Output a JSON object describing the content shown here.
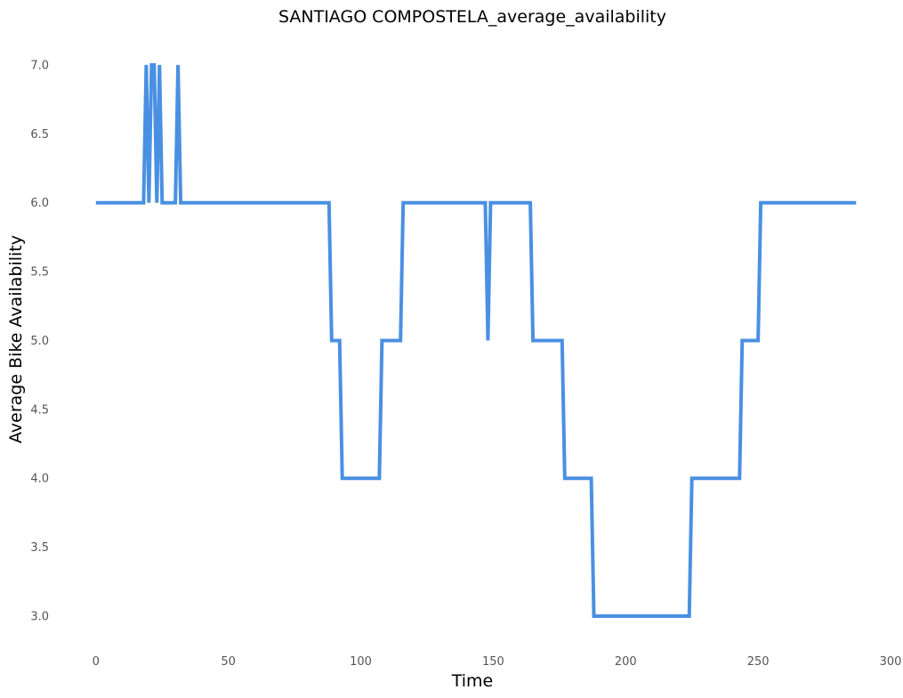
{
  "chart_data": {
    "type": "line",
    "title": "SANTIAGO COMPOSTELA_average_availability",
    "xlabel": "Time",
    "ylabel": "Average Bike Availability",
    "xlim": [
      -8,
      300
    ],
    "ylim": [
      2.78,
      7.2
    ],
    "xticks": [
      0,
      50,
      100,
      150,
      200,
      250,
      300
    ],
    "xtick_labels": [
      "0",
      "50",
      "100",
      "150",
      "200",
      "250",
      "300"
    ],
    "yticks": [
      3.0,
      3.5,
      4.0,
      4.5,
      5.0,
      5.5,
      6.0,
      6.5,
      7.0
    ],
    "ytick_labels": [
      "3.0",
      "3.5",
      "4.0",
      "4.5",
      "5.0",
      "5.5",
      "6.0",
      "6.5",
      "7.0"
    ],
    "grid": false,
    "legend": "none",
    "series": [
      {
        "color": "#4a90e2",
        "x": [
          0,
          18,
          19,
          20,
          21,
          22,
          23,
          24,
          25,
          30,
          31,
          32,
          88,
          89,
          92,
          93,
          107,
          108,
          115,
          116,
          147,
          148,
          149,
          164,
          165,
          176,
          177,
          187,
          188,
          224,
          225,
          243,
          244,
          250,
          251,
          287
        ],
        "y": [
          6,
          6,
          7,
          6,
          7,
          7,
          6,
          7,
          6,
          6,
          7,
          6,
          6,
          5,
          5,
          4,
          4,
          5,
          5,
          6,
          6,
          5,
          6,
          6,
          5,
          5,
          4,
          4,
          3,
          3,
          4,
          4,
          5,
          5,
          6,
          6
        ]
      }
    ]
  }
}
